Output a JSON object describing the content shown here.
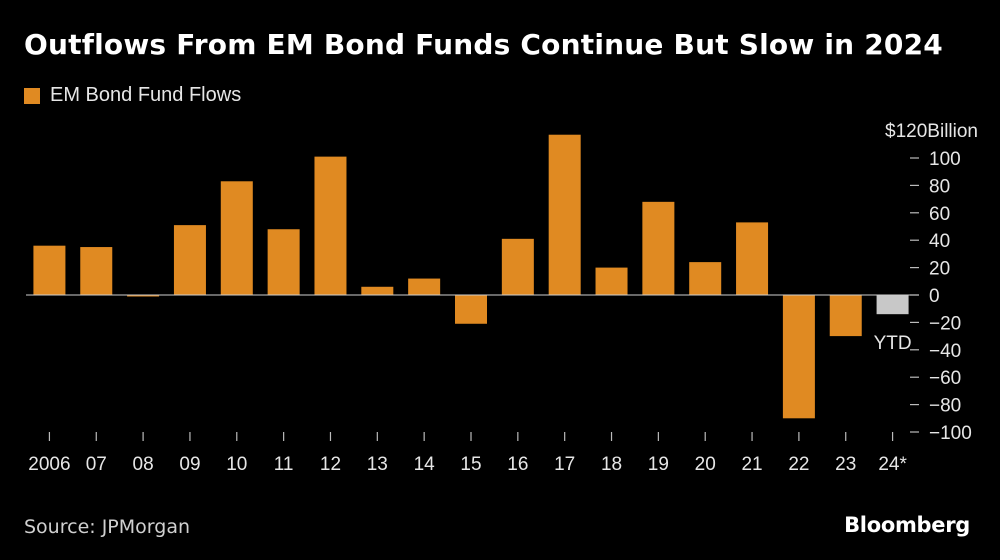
{
  "title": "Outflows From EM Bond Funds Continue But Slow in 2024",
  "source": "Source: JPMorgan",
  "brand": "Bloomberg",
  "chart_data": {
    "type": "bar",
    "title": "Outflows From EM Bond Funds Continue But Slow in 2024",
    "legend": {
      "label": "EM Bond Fund Flows",
      "placement": "top-left"
    },
    "unit_label": "$120Billion",
    "ylim": [
      -100,
      120
    ],
    "yticks": [
      100,
      80,
      60,
      40,
      20,
      0,
      -20,
      -40,
      -60,
      -80,
      -100
    ],
    "categories": [
      "2006",
      "07",
      "08",
      "09",
      "10",
      "11",
      "12",
      "13",
      "14",
      "15",
      "16",
      "17",
      "18",
      "19",
      "20",
      "21",
      "22",
      "23",
      "24*"
    ],
    "values": [
      36,
      35,
      -1,
      51,
      83,
      48,
      101,
      6,
      12,
      -21,
      41,
      117,
      20,
      68,
      24,
      53,
      -90,
      -30,
      -14
    ],
    "annotation": "YTD",
    "colors": {
      "bar": "#e08a22",
      "ytd_bar": "#c8c8c8",
      "axis": "#bbbbbb"
    }
  }
}
